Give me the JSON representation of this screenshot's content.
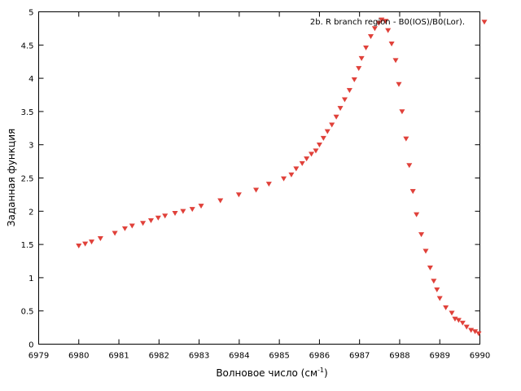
{
  "chart_data": {
    "type": "scatter",
    "xlabel": "Волновое число (см",
    "xlabel_sup": "-1",
    "xlabel_close": ")",
    "ylabel": "Заданная функция",
    "xlim": [
      6979,
      6990
    ],
    "ylim": [
      0,
      5
    ],
    "xticks": [
      "6979",
      "6980",
      "6981",
      "6982",
      "6983",
      "6984",
      "6985",
      "6986",
      "6987",
      "6988",
      "6989",
      "6990"
    ],
    "yticks": [
      "0",
      "0.5",
      "1",
      "1.5",
      "2",
      "2.5",
      "3",
      "3.5",
      "4",
      "4.5",
      "5"
    ],
    "grid": false,
    "legend_position": "top-right",
    "series": [
      {
        "name": "2b. R branch region - B0(IOS)/B0(Lor).",
        "color": "#e0413a",
        "marker": "triangle-down",
        "points": [
          [
            6980.0,
            1.48
          ],
          [
            6980.16,
            1.51
          ],
          [
            6980.32,
            1.54
          ],
          [
            6980.54,
            1.59
          ],
          [
            6980.9,
            1.67
          ],
          [
            6981.15,
            1.74
          ],
          [
            6981.33,
            1.78
          ],
          [
            6981.6,
            1.82
          ],
          [
            6981.8,
            1.86
          ],
          [
            6981.98,
            1.9
          ],
          [
            6982.15,
            1.93
          ],
          [
            6982.4,
            1.97
          ],
          [
            6982.6,
            2.0
          ],
          [
            6982.83,
            2.03
          ],
          [
            6983.05,
            2.08
          ],
          [
            6983.53,
            2.16
          ],
          [
            6983.99,
            2.25
          ],
          [
            6984.42,
            2.32
          ],
          [
            6984.74,
            2.41
          ],
          [
            6985.11,
            2.49
          ],
          [
            6985.3,
            2.55
          ],
          [
            6985.42,
            2.64
          ],
          [
            6985.57,
            2.72
          ],
          [
            6985.68,
            2.79
          ],
          [
            6985.8,
            2.86
          ],
          [
            6985.91,
            2.91
          ],
          [
            6986.0,
            3.0
          ],
          [
            6986.1,
            3.1
          ],
          [
            6986.2,
            3.2
          ],
          [
            6986.31,
            3.3
          ],
          [
            6986.42,
            3.42
          ],
          [
            6986.52,
            3.55
          ],
          [
            6986.63,
            3.68
          ],
          [
            6986.75,
            3.82
          ],
          [
            6986.87,
            3.98
          ],
          [
            6986.98,
            4.15
          ],
          [
            6987.05,
            4.3
          ],
          [
            6987.16,
            4.46
          ],
          [
            6987.28,
            4.63
          ],
          [
            6987.38,
            4.75
          ],
          [
            6987.48,
            4.83
          ],
          [
            6987.55,
            4.88
          ],
          [
            6987.65,
            4.86
          ],
          [
            6987.71,
            4.72
          ],
          [
            6987.8,
            4.52
          ],
          [
            6987.9,
            4.27
          ],
          [
            6987.98,
            3.91
          ],
          [
            6988.06,
            3.5
          ],
          [
            6988.16,
            3.09
          ],
          [
            6988.24,
            2.69
          ],
          [
            6988.33,
            2.3
          ],
          [
            6988.42,
            1.95
          ],
          [
            6988.54,
            1.65
          ],
          [
            6988.65,
            1.4
          ],
          [
            6988.76,
            1.15
          ],
          [
            6988.85,
            0.95
          ],
          [
            6988.93,
            0.82
          ],
          [
            6989.0,
            0.69
          ],
          [
            6989.15,
            0.55
          ],
          [
            6989.3,
            0.47
          ],
          [
            6989.38,
            0.38
          ],
          [
            6989.47,
            0.36
          ],
          [
            6989.57,
            0.32
          ],
          [
            6989.67,
            0.26
          ],
          [
            6989.78,
            0.21
          ],
          [
            6989.88,
            0.19
          ],
          [
            6989.97,
            0.16
          ]
        ]
      }
    ]
  }
}
